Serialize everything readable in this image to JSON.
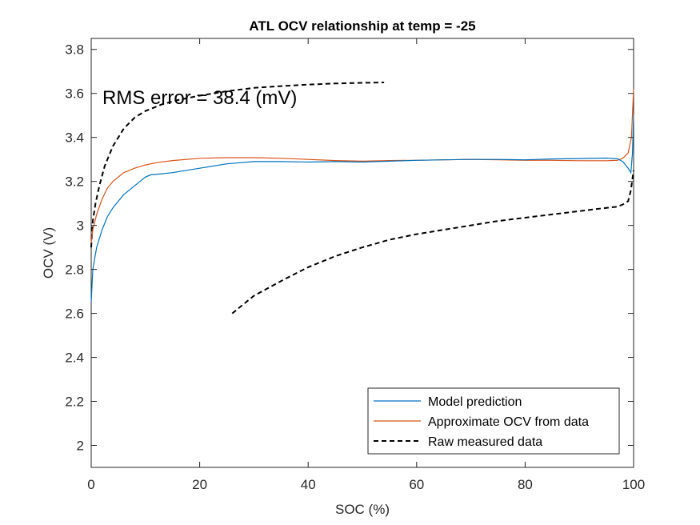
{
  "chart_data": {
    "type": "line",
    "title": "ATL OCV relationship at temp = -25",
    "xlabel": "SOC (%)",
    "ylabel": "OCV (V)",
    "xlim": [
      0,
      100
    ],
    "ylim": [
      1.9,
      3.85
    ],
    "xticks": [
      0,
      20,
      40,
      60,
      80,
      100
    ],
    "yticks": [
      2,
      2.2,
      2.4,
      2.6,
      2.8,
      3,
      3.2,
      3.4,
      3.6,
      3.8
    ],
    "xtick_labels": [
      "0",
      "20",
      "40",
      "60",
      "80",
      "100"
    ],
    "ytick_labels": [
      "2",
      "2.2",
      "2.4",
      "2.6",
      "2.8",
      "3",
      "3.2",
      "3.4",
      "3.6",
      "3.8"
    ],
    "grid": false,
    "legend_position": "bottom-right",
    "annotation": "RMS error = 38.4 (mV)",
    "series": [
      {
        "name": "Model prediction",
        "color": "#0072BD",
        "style": "solid",
        "points": [
          [
            0,
            2.65
          ],
          [
            0.3,
            2.8
          ],
          [
            1,
            2.9
          ],
          [
            2,
            2.98
          ],
          [
            3,
            3.04
          ],
          [
            4,
            3.08
          ],
          [
            5,
            3.11
          ],
          [
            6,
            3.14
          ],
          [
            7,
            3.16
          ],
          [
            8,
            3.18
          ],
          [
            9,
            3.2
          ],
          [
            10,
            3.22
          ],
          [
            11,
            3.23
          ],
          [
            12,
            3.232
          ],
          [
            15,
            3.24
          ],
          [
            20,
            3.26
          ],
          [
            25,
            3.28
          ],
          [
            30,
            3.29
          ],
          [
            35,
            3.29
          ],
          [
            40,
            3.288
          ],
          [
            45,
            3.29
          ],
          [
            50,
            3.288
          ],
          [
            55,
            3.292
          ],
          [
            60,
            3.296
          ],
          [
            65,
            3.298
          ],
          [
            70,
            3.3
          ],
          [
            75,
            3.3
          ],
          [
            80,
            3.298
          ],
          [
            85,
            3.302
          ],
          [
            90,
            3.304
          ],
          [
            95,
            3.306
          ],
          [
            97,
            3.303
          ],
          [
            98,
            3.29
          ],
          [
            99,
            3.26
          ],
          [
            99.5,
            3.24
          ],
          [
            99.8,
            3.33
          ],
          [
            100,
            3.5
          ]
        ]
      },
      {
        "name": "Approximate OCV from data",
        "color": "#D95319",
        "style": "solid",
        "points": [
          [
            0,
            2.92
          ],
          [
            0.3,
            2.98
          ],
          [
            1,
            3.05
          ],
          [
            2,
            3.12
          ],
          [
            3,
            3.17
          ],
          [
            4,
            3.2
          ],
          [
            5,
            3.22
          ],
          [
            6,
            3.24
          ],
          [
            7,
            3.25
          ],
          [
            8,
            3.26
          ],
          [
            10,
            3.275
          ],
          [
            12,
            3.285
          ],
          [
            15,
            3.295
          ],
          [
            20,
            3.305
          ],
          [
            25,
            3.308
          ],
          [
            30,
            3.308
          ],
          [
            35,
            3.305
          ],
          [
            40,
            3.3
          ],
          [
            45,
            3.295
          ],
          [
            50,
            3.292
          ],
          [
            55,
            3.295
          ],
          [
            60,
            3.296
          ],
          [
            65,
            3.298
          ],
          [
            70,
            3.3
          ],
          [
            75,
            3.298
          ],
          [
            80,
            3.296
          ],
          [
            85,
            3.296
          ],
          [
            90,
            3.294
          ],
          [
            95,
            3.294
          ],
          [
            97,
            3.296
          ],
          [
            98,
            3.305
          ],
          [
            99,
            3.33
          ],
          [
            99.6,
            3.4
          ],
          [
            100,
            3.62
          ]
        ]
      },
      {
        "name": "Raw measured data",
        "color": "#000000",
        "style": "dashed",
        "points_upper": [
          [
            0,
            2.9
          ],
          [
            0.3,
            3.02
          ],
          [
            0.8,
            3.1
          ],
          [
            1.5,
            3.18
          ],
          [
            2.5,
            3.27
          ],
          [
            4,
            3.36
          ],
          [
            6,
            3.44
          ],
          [
            8,
            3.49
          ],
          [
            10,
            3.52
          ],
          [
            13,
            3.55
          ],
          [
            16,
            3.57
          ],
          [
            20,
            3.59
          ],
          [
            25,
            3.61
          ],
          [
            30,
            3.625
          ],
          [
            35,
            3.633
          ],
          [
            40,
            3.64
          ],
          [
            45,
            3.645
          ],
          [
            50,
            3.648
          ],
          [
            54,
            3.65
          ]
        ],
        "points_lower": [
          [
            26,
            2.6
          ],
          [
            28,
            2.64
          ],
          [
            30,
            2.68
          ],
          [
            33,
            2.72
          ],
          [
            36,
            2.76
          ],
          [
            40,
            2.81
          ],
          [
            45,
            2.86
          ],
          [
            50,
            2.9
          ],
          [
            55,
            2.935
          ],
          [
            60,
            2.96
          ],
          [
            65,
            2.98
          ],
          [
            70,
            3.0
          ],
          [
            75,
            3.02
          ],
          [
            80,
            3.035
          ],
          [
            85,
            3.05
          ],
          [
            90,
            3.065
          ],
          [
            95,
            3.08
          ],
          [
            97,
            3.085
          ],
          [
            98,
            3.095
          ],
          [
            99,
            3.11
          ],
          [
            99.5,
            3.16
          ],
          [
            100,
            3.25
          ]
        ]
      }
    ]
  }
}
